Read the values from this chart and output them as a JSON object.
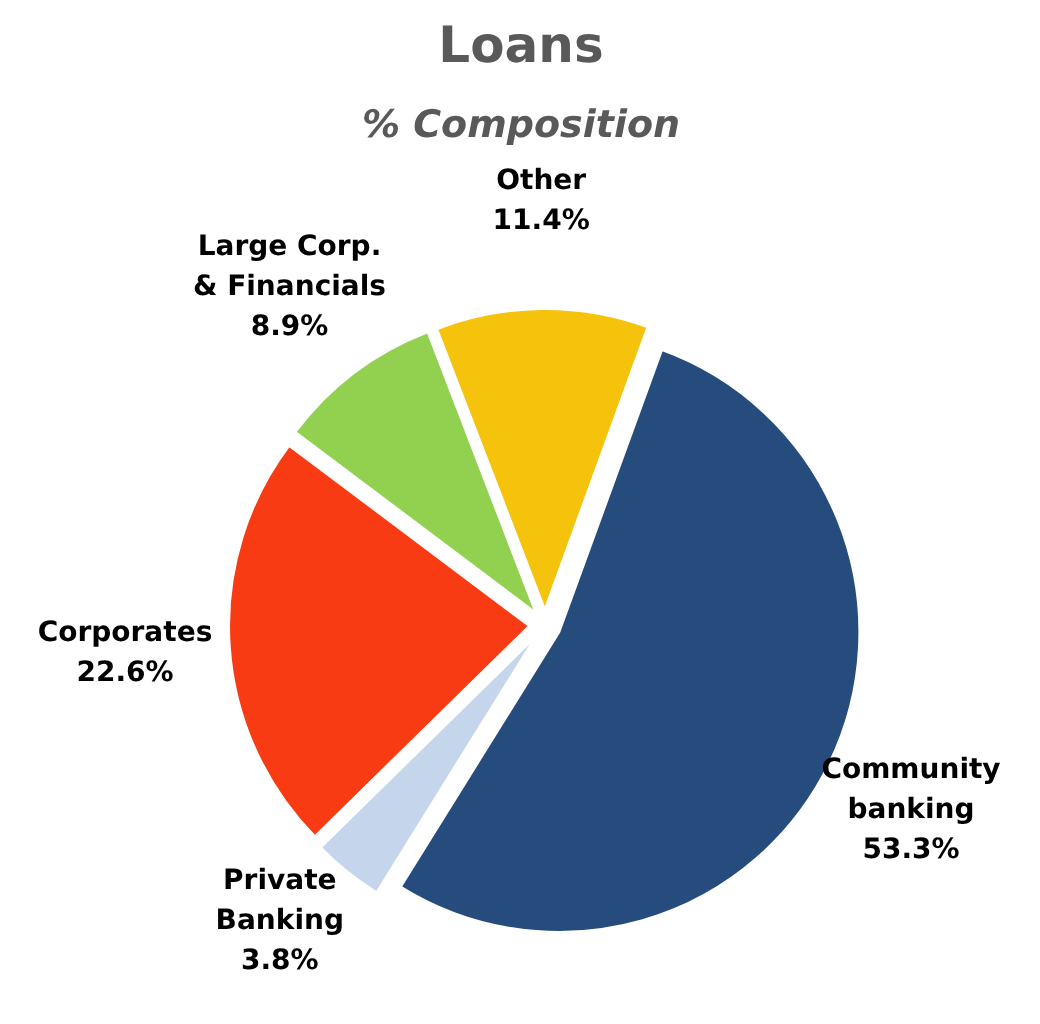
{
  "chart_data": {
    "type": "pie",
    "title": "Loans",
    "subtitle": "% Composition",
    "categories": [
      "Community banking",
      "Private Banking",
      "Corporates",
      "Large Corp. & Financials",
      "Other"
    ],
    "values": [
      53.3,
      3.8,
      22.6,
      8.9,
      11.4
    ],
    "value_labels": [
      "53.3%",
      "3.8%",
      "22.6%",
      "8.9%",
      "11.4%"
    ],
    "colors": [
      "#264c7e",
      "#c5d6ec",
      "#f83b12",
      "#92d050",
      "#f5c20c"
    ]
  }
}
